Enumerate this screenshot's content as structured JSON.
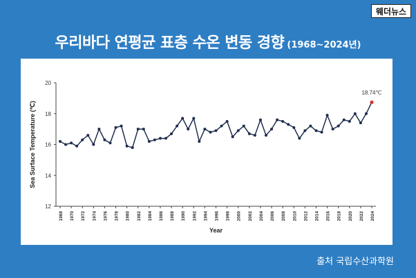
{
  "brand": {
    "logo_text": "웨더뉴스"
  },
  "header": {
    "title": "우리바다 연평균 표층 수온 변동 경향",
    "range": "(1968~2024년)"
  },
  "footer": {
    "source": "출처 국립수산과학원"
  },
  "colors": {
    "background": "#2e7ec4",
    "line": "#1f2d4e",
    "highlight": "#e03030"
  },
  "chart_data": {
    "type": "line",
    "title": "",
    "xlabel": "Year",
    "ylabel": "Sea Surface Temperature (℃)",
    "ylim": [
      12,
      20
    ],
    "yticks": [
      12,
      14,
      16,
      18,
      20
    ],
    "xticks": [
      1968,
      1970,
      1972,
      1974,
      1976,
      1978,
      1980,
      1982,
      1984,
      1986,
      1988,
      1990,
      1992,
      1994,
      1996,
      1998,
      2000,
      2002,
      2004,
      2006,
      2008,
      2010,
      2012,
      2014,
      2016,
      2018,
      2020,
      2022,
      2024
    ],
    "grid": false,
    "x": [
      1968,
      1969,
      1970,
      1971,
      1972,
      1973,
      1974,
      1975,
      1976,
      1977,
      1978,
      1979,
      1980,
      1981,
      1982,
      1983,
      1984,
      1985,
      1986,
      1987,
      1988,
      1989,
      1990,
      1991,
      1992,
      1993,
      1994,
      1995,
      1996,
      1997,
      1998,
      1999,
      2000,
      2001,
      2002,
      2003,
      2004,
      2005,
      2006,
      2007,
      2008,
      2009,
      2010,
      2011,
      2012,
      2013,
      2014,
      2015,
      2016,
      2017,
      2018,
      2019,
      2020,
      2021,
      2022,
      2023,
      2024
    ],
    "values": [
      16.2,
      16.0,
      16.1,
      15.9,
      16.3,
      16.6,
      16.0,
      17.0,
      16.3,
      16.1,
      17.1,
      17.2,
      15.9,
      15.8,
      17.0,
      17.0,
      16.2,
      16.3,
      16.4,
      16.4,
      16.7,
      17.2,
      17.7,
      17.0,
      17.7,
      16.2,
      17.0,
      16.8,
      16.9,
      17.2,
      17.5,
      16.5,
      16.9,
      17.2,
      16.7,
      16.6,
      17.6,
      16.6,
      17.0,
      17.6,
      17.5,
      17.3,
      17.1,
      16.4,
      16.9,
      17.2,
      16.9,
      16.8,
      17.9,
      17.0,
      17.2,
      17.6,
      17.5,
      18.0,
      17.4,
      18.0,
      18.74
    ],
    "annotations": [
      {
        "x": 2024,
        "y": 18.74,
        "text": "18.74℃"
      }
    ]
  }
}
